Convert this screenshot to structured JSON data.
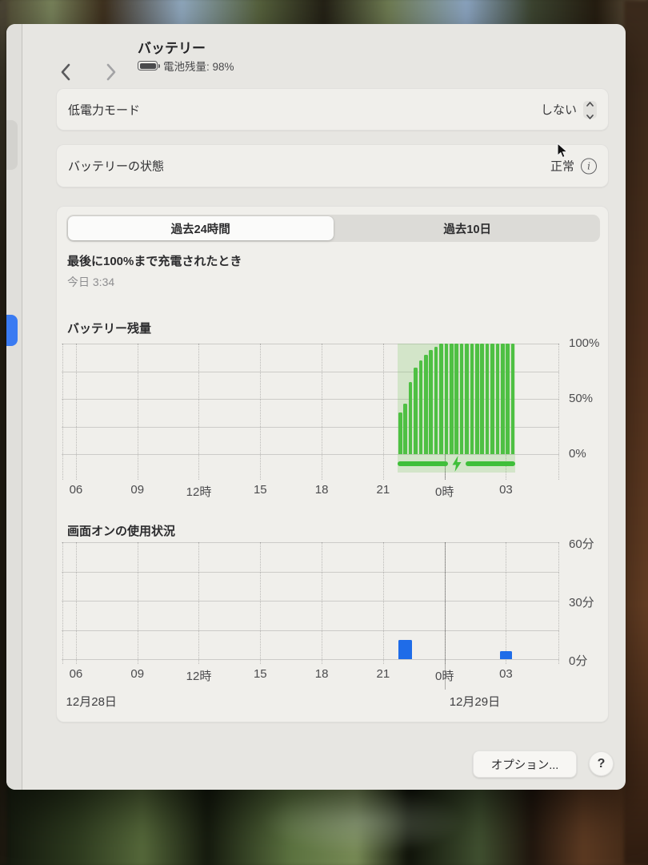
{
  "window": {
    "title": "バッテリー",
    "subtitle": "電池残量: 98%"
  },
  "rows": {
    "low_power_label": "低電力モード",
    "low_power_value": "しない",
    "health_label": "バッテリーの状態",
    "health_value": "正常",
    "info_glyph": "i"
  },
  "tabs": {
    "t24": "過去24時間",
    "t10": "過去10日"
  },
  "last_charged": {
    "label": "最後に100%まで充電されたとき",
    "value": "今日 3:34"
  },
  "footer": {
    "options": "オプション...",
    "help": "?"
  },
  "colors": {
    "bar_green": "#4ec043",
    "region_green": "rgba(110,195,80,0.22)",
    "strip_green": "#3fbf3a",
    "bar_blue": "#1f6ce8",
    "sidebar_blue": "#3a7bf2"
  },
  "chart_data": [
    {
      "type": "bar",
      "title": "バッテリー残量",
      "ylim": [
        0,
        100
      ],
      "y_grid": [
        0,
        25,
        50,
        75,
        100
      ],
      "y_ticks": [
        {
          "v": 100,
          "label": "100%"
        },
        {
          "v": 50,
          "label": "50%"
        },
        {
          "v": 0,
          "label": "0%"
        }
      ],
      "x_range_h": [
        -0.7,
        23.6
      ],
      "x_ticks": [
        {
          "h": 0,
          "label": "06"
        },
        {
          "h": 3,
          "label": "09"
        },
        {
          "h": 6,
          "label": "12時"
        },
        {
          "h": 9,
          "label": "15"
        },
        {
          "h": 12,
          "label": "18"
        },
        {
          "h": 15,
          "label": "21"
        },
        {
          "h": 18,
          "label": "0時"
        },
        {
          "h": 21,
          "label": "03"
        }
      ],
      "midnight_h": 18,
      "bars": {
        "start_h": 15.75,
        "interval_h": 0.25,
        "values": [
          38,
          46,
          65,
          78,
          85,
          90,
          94,
          97,
          100,
          100,
          100,
          100,
          100,
          100,
          100,
          100,
          100,
          100,
          100,
          100,
          100,
          100,
          100
        ]
      },
      "charging": {
        "start_h": 15.7,
        "end_h": 21.45,
        "bolt_h": 18.6
      },
      "legend": "none",
      "grid": true
    },
    {
      "type": "bar",
      "title": "画面オンの使用状況",
      "ylim": [
        0,
        60
      ],
      "y_grid": [
        0,
        15,
        30,
        45,
        60
      ],
      "y_ticks": [
        {
          "v": 60,
          "label": "60分"
        },
        {
          "v": 30,
          "label": "30分"
        },
        {
          "v": 0,
          "label": "0分"
        }
      ],
      "x_range_h": [
        -0.7,
        23.6
      ],
      "x_ticks": [
        {
          "h": 0,
          "label": "06"
        },
        {
          "h": 3,
          "label": "09"
        },
        {
          "h": 6,
          "label": "12時"
        },
        {
          "h": 9,
          "label": "15"
        },
        {
          "h": 12,
          "label": "18"
        },
        {
          "h": 15,
          "label": "21"
        },
        {
          "h": 18,
          "label": "0時"
        },
        {
          "h": 21,
          "label": "03"
        }
      ],
      "midnight_h": 18,
      "bars": [
        {
          "h": 15.75,
          "w": 0.66,
          "v": 10
        },
        {
          "h": 20.7,
          "w": 0.6,
          "v": 4
        }
      ],
      "dates": [
        {
          "h": -0.6,
          "label": "12月28日"
        },
        {
          "h": 18.12,
          "label": "12月29日"
        }
      ],
      "legend": "none",
      "grid": true
    }
  ]
}
